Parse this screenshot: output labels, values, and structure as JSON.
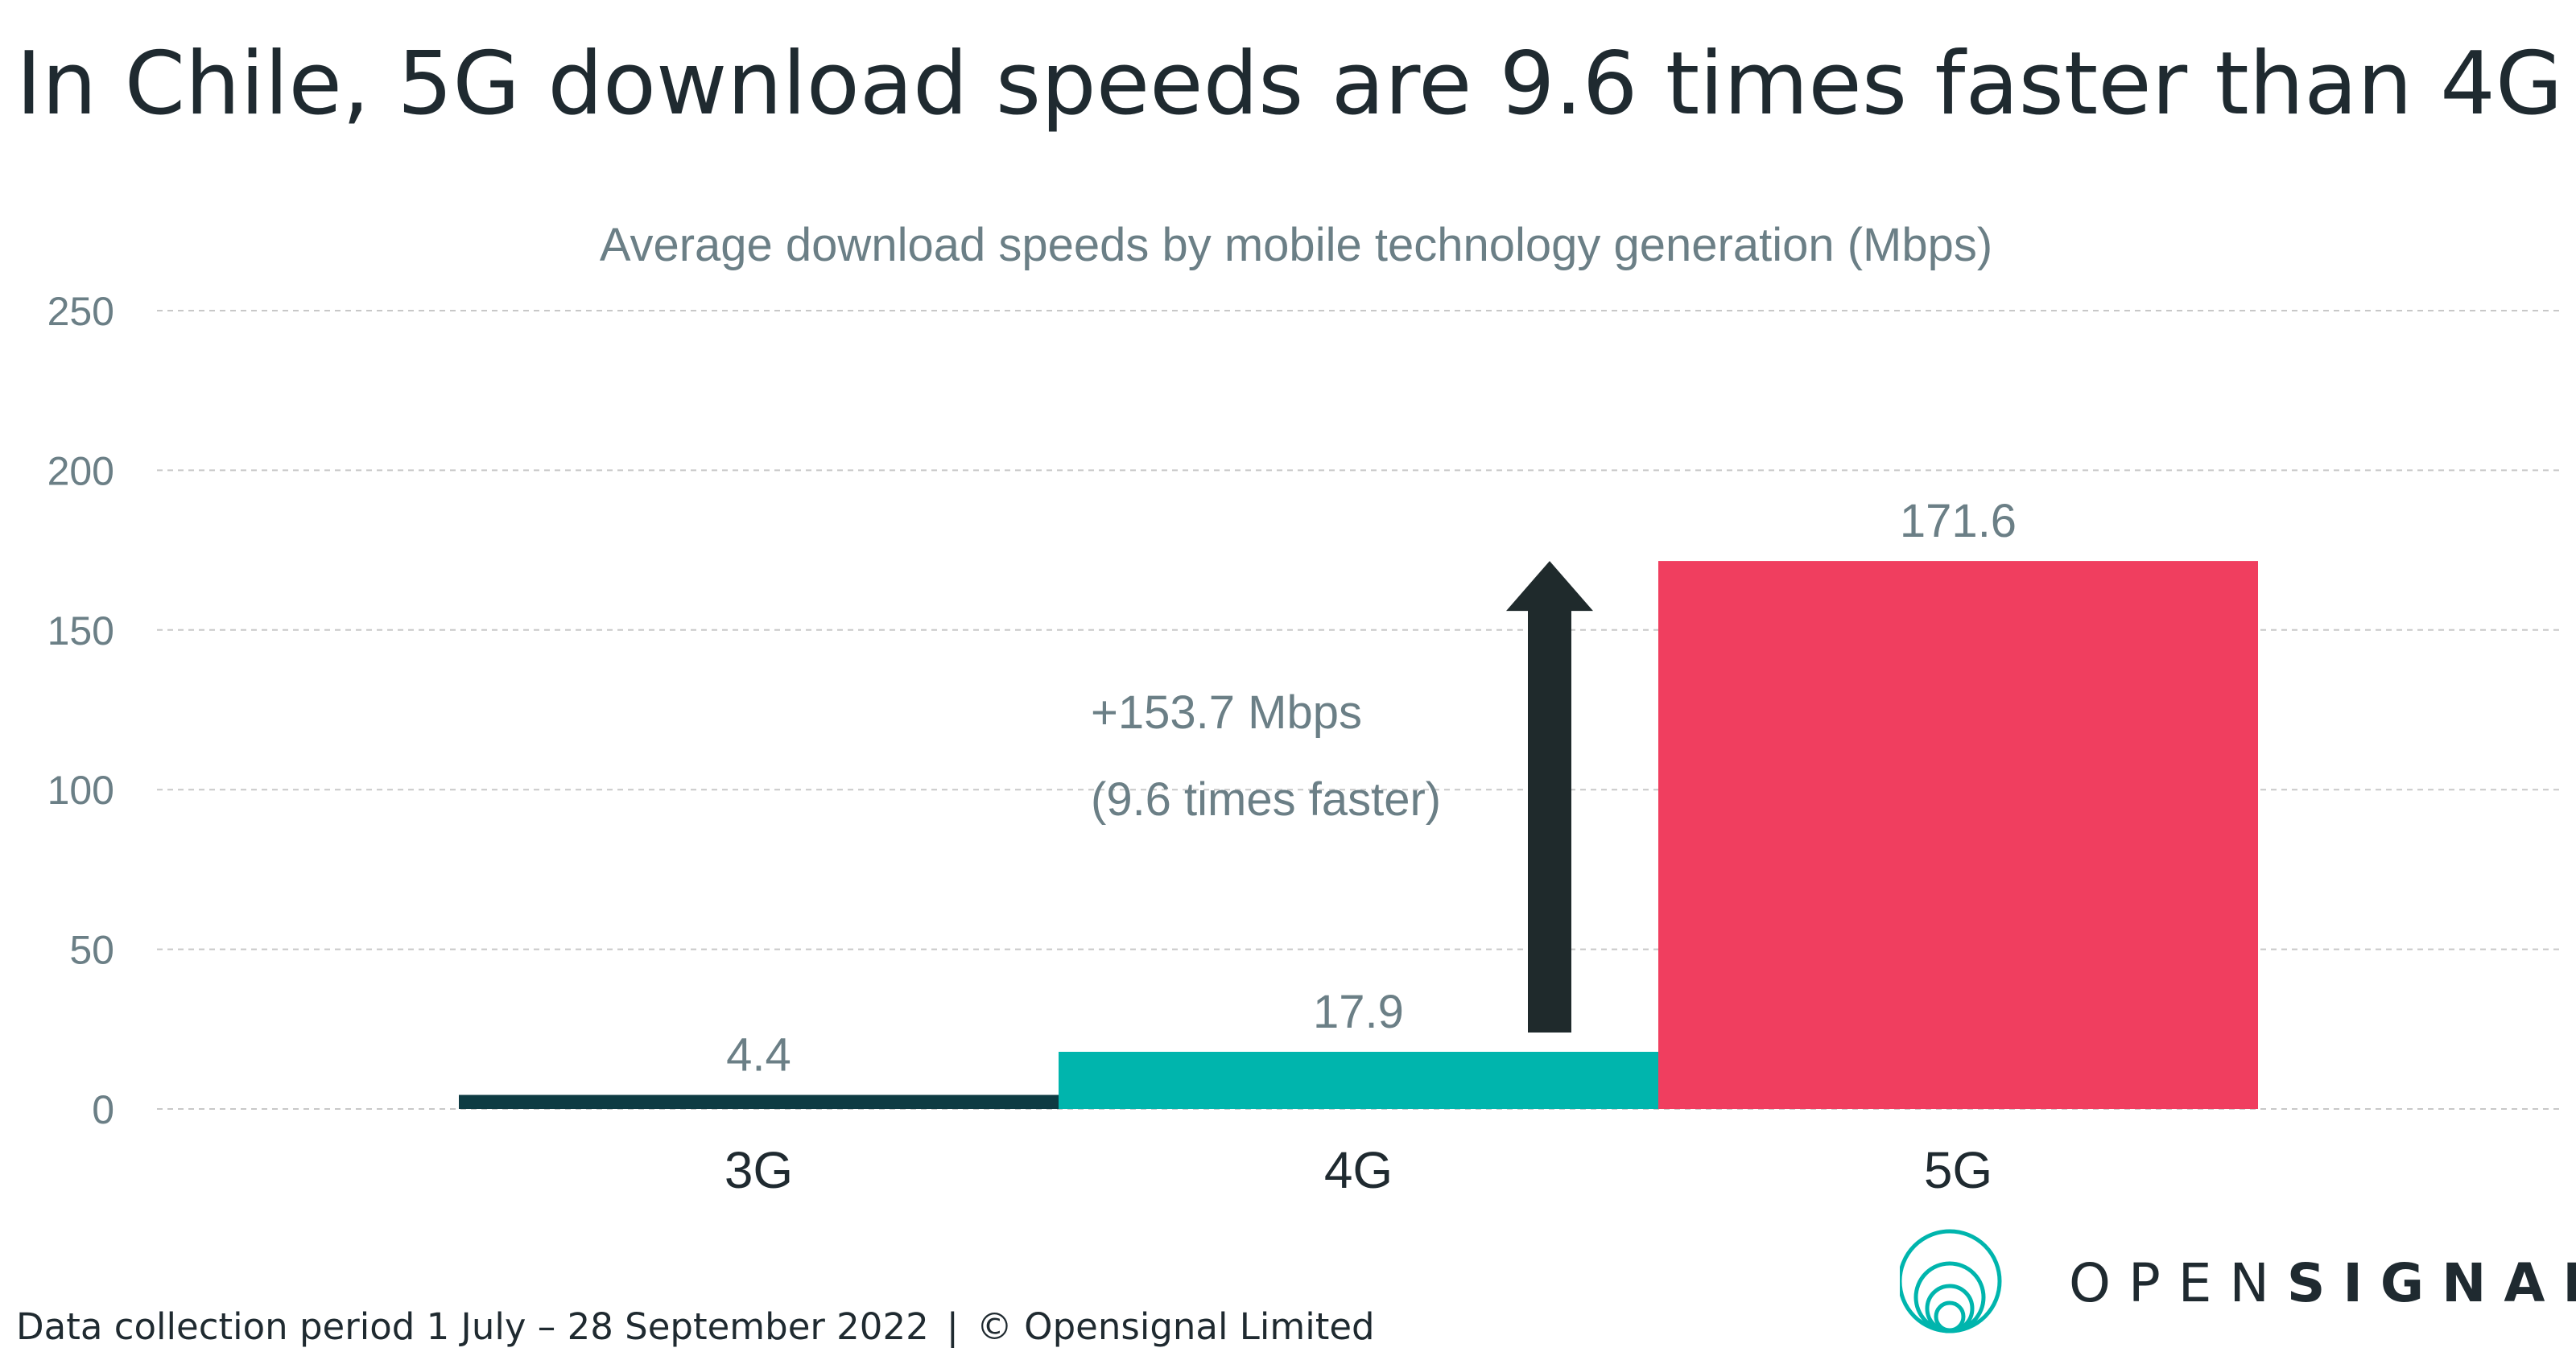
{
  "title": "In Chile, 5G download speeds are 9.6 times faster than 4G",
  "footer": {
    "period": "Data collection period 1 July – 28 September 2022",
    "separator": "|",
    "copyright": "© Opensignal Limited"
  },
  "logo": {
    "name_light": "OPEN",
    "name_bold": "SIGNAL",
    "icon": "opensignal-rings-icon"
  },
  "colors": {
    "3G": "#0e3b43",
    "4G": "#00b5ad",
    "5G": "#f03e5f",
    "arrow": "#1f2a2c",
    "text": "#6b7f86",
    "grid": "#c8c8c8"
  },
  "chart_data": {
    "type": "bar",
    "title": "Average download speeds by mobile technology generation (Mbps)",
    "categories": [
      "3G",
      "4G",
      "5G"
    ],
    "values": [
      4.4,
      17.9,
      171.6
    ],
    "value_labels": [
      "4.4",
      "17.9",
      "171.6"
    ],
    "ylim": [
      0,
      250
    ],
    "yticks": [
      0,
      50,
      100,
      150,
      200,
      250
    ],
    "grid": true,
    "annotation": {
      "lines": [
        "+153.7 Mbps",
        "(9.6 times faster)"
      ],
      "arrow": "up"
    }
  }
}
